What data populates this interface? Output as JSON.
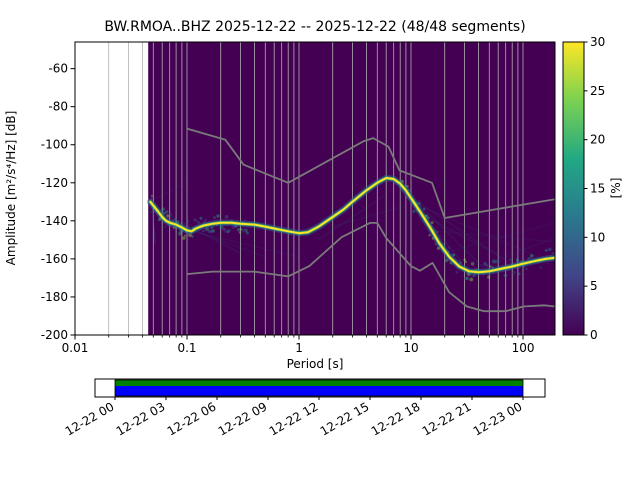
{
  "title": "BW.RMOA..BHZ  2025-12-22 -- 2025-12-22  (48/48 segments)",
  "axes": {
    "xlabel": "Period [s]",
    "ylabel": "Amplitude [m²/s⁴/Hz] [dB]",
    "xscale": "log",
    "xlim": [
      0.01,
      193
    ],
    "ylim": [
      -200,
      -46
    ],
    "xticks": {
      "values": [
        0.01,
        0.1,
        1,
        10,
        100
      ],
      "labels": [
        "0.01",
        "0.1",
        "1",
        "10",
        "100"
      ]
    },
    "yticks": {
      "values": [
        -200,
        -180,
        -160,
        -140,
        -120,
        -100,
        -80,
        -60
      ],
      "labels": [
        "-200",
        "-180",
        "-160",
        "-140",
        "-120",
        "-100",
        "-80",
        "-60"
      ]
    },
    "grid_color": "#b0b0b0"
  },
  "colorbar": {
    "label": "[%]",
    "range": [
      0,
      30
    ],
    "ticks": {
      "values": [
        0,
        5,
        10,
        15,
        20,
        25,
        30
      ],
      "labels": [
        "0",
        "5",
        "10",
        "15",
        "20",
        "25",
        "30"
      ]
    },
    "colormap": "viridis",
    "stops": [
      [
        0,
        "#440154"
      ],
      [
        0.2,
        "#414487"
      ],
      [
        0.4,
        "#2a788e"
      ],
      [
        0.6,
        "#22a884"
      ],
      [
        0.8,
        "#7ad151"
      ],
      [
        1,
        "#fde725"
      ]
    ]
  },
  "chart_data": {
    "type": "heatmap",
    "description": "ObsPy PPSD probabilistic power spectral density for station BW.RMOA..BHZ, 48 of 48 half-hour segments, 2025-12-22",
    "background_color_zero_percent": "#440154",
    "data_period_range": [
      0.045,
      193
    ],
    "mode_curve": {
      "periods": [
        0.047,
        0.05,
        0.055,
        0.06,
        0.065,
        0.07,
        0.08,
        0.09,
        0.1,
        0.11,
        0.12,
        0.14,
        0.17,
        0.2,
        0.25,
        0.3,
        0.4,
        0.5,
        0.6,
        0.8,
        1.0,
        1.2,
        1.5,
        2.0,
        2.5,
        3.0,
        4.0,
        5.0,
        6.0,
        7.0,
        8.0,
        9.0,
        10,
        12,
        15,
        18,
        22,
        27,
        33,
        40,
        50,
        60,
        80,
        100,
        130,
        160,
        190
      ],
      "db": [
        -130,
        -132,
        -135,
        -138,
        -140,
        -141,
        -142,
        -143.5,
        -145,
        -145.5,
        -144,
        -142.5,
        -141.5,
        -141,
        -141,
        -141.5,
        -142,
        -143,
        -144,
        -145.5,
        -146.5,
        -146,
        -143,
        -138,
        -134,
        -130,
        -124,
        -120,
        -117.5,
        -118,
        -120.5,
        -124,
        -128,
        -135,
        -144,
        -152,
        -159,
        -164,
        -166.5,
        -167,
        -166.5,
        -165.5,
        -164,
        -162.5,
        -161,
        -160,
        -159.5
      ]
    },
    "ridge_style": {
      "halo": "#31688e",
      "mid": "#2db27d",
      "core": "#fde725"
    },
    "noise_models": {
      "color": "#7a7a7a",
      "nlnm": {
        "periods": [
          0.1,
          0.17,
          0.4,
          0.8,
          1.24,
          2.4,
          4.3,
          5.0,
          6.0,
          10,
          12,
          15.6,
          21.9,
          31.6,
          45,
          70,
          101,
          154,
          193
        ],
        "db": [
          -168,
          -166.7,
          -166.7,
          -169.2,
          -163.7,
          -148.6,
          -141.1,
          -141.1,
          -149,
          -163.8,
          -166.2,
          -162.1,
          -177.5,
          -185,
          -187.5,
          -187.5,
          -185,
          -184.4,
          -185
        ]
      },
      "nhnm": {
        "periods": [
          0.1,
          0.22,
          0.32,
          0.8,
          3.8,
          4.6,
          6.3,
          7.9,
          15.4,
          20,
          193
        ],
        "db": [
          -91.5,
          -97.4,
          -110.5,
          -120,
          -98.1,
          -96.5,
          -101,
          -113.5,
          -120,
          -138.5,
          -128.6
        ]
      }
    },
    "spread_streaks": [
      {
        "p": [
          0.048,
          0.052
        ],
        "db": [
          -126,
          -152
        ],
        "opacity": 0.3
      },
      {
        "p": [
          0.05,
          0.3
        ],
        "db": [
          -133,
          -157
        ],
        "opacity": 0.14
      },
      {
        "p": [
          0.06,
          0.5
        ],
        "db": [
          -139,
          -159
        ],
        "opacity": 0.12
      },
      {
        "p": [
          0.05,
          0.1
        ],
        "db": [
          -129,
          -120
        ],
        "opacity": 0.1
      },
      {
        "p": [
          0.12,
          1.0
        ],
        "db": [
          -146,
          -159
        ],
        "opacity": 0.1
      },
      {
        "p": [
          1.5,
          6.0
        ],
        "db": [
          -150,
          -126
        ],
        "opacity": 0.13
      },
      {
        "p": [
          2.0,
          9.0
        ],
        "db": [
          -143,
          -132
        ],
        "opacity": 0.12
      },
      {
        "p": [
          7,
          28
        ],
        "db": [
          -119,
          -161
        ],
        "opacity": 0.2
      },
      {
        "p": [
          8,
          45
        ],
        "db": [
          -122,
          -165
        ],
        "opacity": 0.16
      },
      {
        "p": [
          9,
          80
        ],
        "db": [
          -126,
          -163
        ],
        "opacity": 0.14
      },
      {
        "p": [
          10,
          150
        ],
        "db": [
          -130,
          -160
        ],
        "opacity": 0.11
      },
      {
        "p": [
          12,
          60
        ],
        "db": [
          -136,
          -158
        ],
        "opacity": 0.13
      },
      {
        "p": [
          15,
          190
        ],
        "db": [
          -145,
          -151
        ],
        "opacity": 0.09
      },
      {
        "p": [
          20,
          190
        ],
        "db": [
          -157,
          -141
        ],
        "opacity": 0.09
      },
      {
        "p": [
          30,
          190
        ],
        "db": [
          -167,
          -149
        ],
        "opacity": 0.09
      }
    ],
    "speckle_regions": [
      {
        "p_min": 0.047,
        "p_max": 0.35,
        "n": 80
      },
      {
        "p_min": 8,
        "p_max": 40,
        "n": 60
      },
      {
        "p_min": 30,
        "p_max": 190,
        "n": 50
      }
    ]
  },
  "timeline": {
    "labels": [
      "12-22 00",
      "12-22 03",
      "12-22 06",
      "12-22 09",
      "12-22 12",
      "12-22 15",
      "12-22 18",
      "12-22 21",
      "12-23 00"
    ],
    "bar_colors": {
      "top": "#008000",
      "bottom": "#0000ff",
      "background": "#ffffff"
    }
  }
}
